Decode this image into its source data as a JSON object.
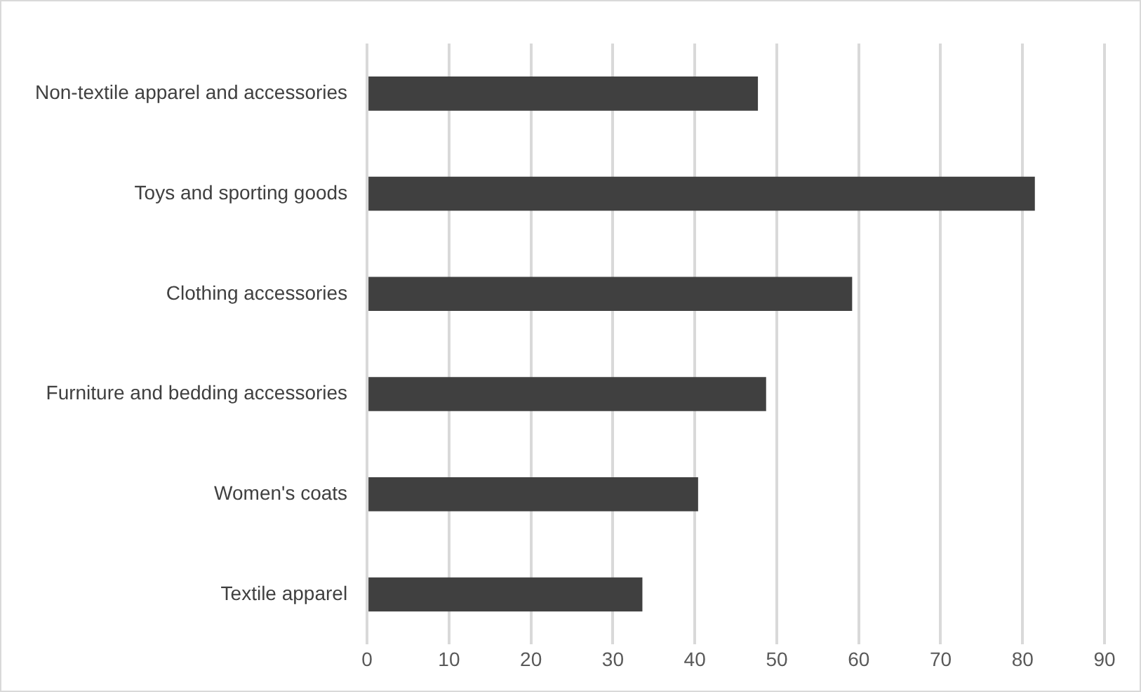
{
  "chart_data": {
    "type": "bar",
    "orientation": "horizontal",
    "categories": [
      "Non-textile apparel and accessories",
      "Toys and sporting goods",
      "Clothing accessories",
      "Furniture and bedding accessories",
      "Women's coats",
      "Textile apparel"
    ],
    "values": [
      47.7,
      81.5,
      59.2,
      48.7,
      40.4,
      33.6
    ],
    "color": "#404040",
    "xlim": [
      0,
      90
    ],
    "xticks": [
      0,
      10,
      20,
      30,
      40,
      50,
      60,
      70,
      80,
      90
    ],
    "grid": "x",
    "legend": false
  }
}
